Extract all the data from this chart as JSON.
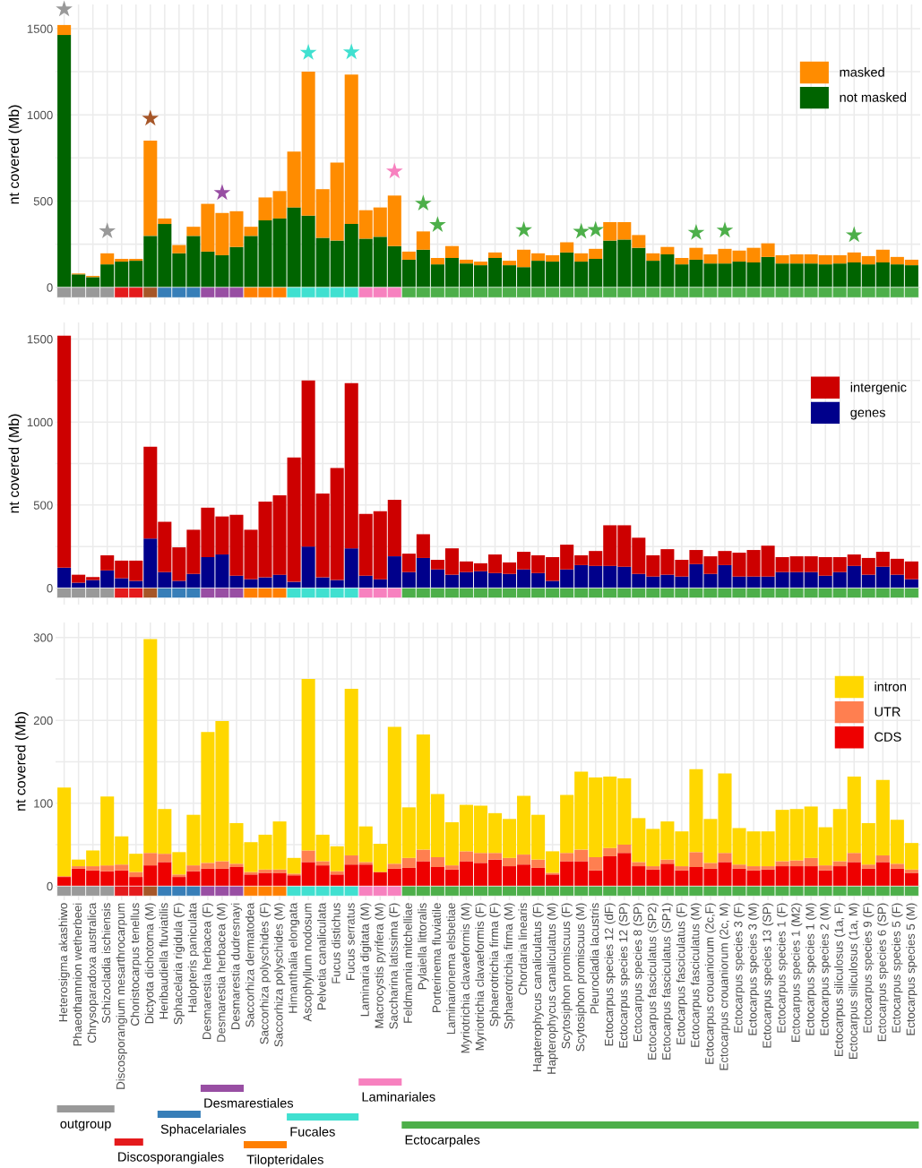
{
  "chart_data": [
    {
      "type": "bar",
      "stacked": true,
      "ylabel": "nt covered (Mb)",
      "tick_labels": "y",
      "grid": true,
      "legend": "top right",
      "ylim": [
        -100,
        1640
      ],
      "yticks": [
        0,
        {
          "value": 250,
          "label": null
        },
        500,
        {
          "value": 750,
          "label": null
        },
        1000,
        {
          "value": 1250,
          "label": null
        },
        1500
      ],
      "categories": [
        "Heterosigma akashiwo",
        "Phaeothamnion wetherbeei",
        "Chrysoparadoxa australica",
        "Schizocladia ischiensis",
        "Discosporangium mesarthrocarpum",
        "Choristocarpus tenellus",
        "Dictyota dichotoma (M)",
        "Heribaudiella fluviatilis",
        "Sphacelaria rigidula (F)",
        "Halopteris paniculata",
        "Desmarestia herbacea (F)",
        "Desmarestia herbacea (M)",
        "Desmarestia dudresnayi",
        "Saccorhiza dermatodea",
        "Saccorhiza polyschides (F)",
        "Saccorhiza polyschides (M)",
        "Himanthalia elongata",
        "Ascophyllum nodosum",
        "Pelvetia canaliculata",
        "Fucus distichus",
        "Fucus serratus",
        "Laminaria digitata (M)",
        "Macrocystis pyrifera (M)",
        "Saccharina latissima (F)",
        "Feldmannia mitchelliae",
        "Pylaiella littoralis",
        "Porterinema fluviatile",
        "Laminarionema elsbetiae",
        "Myriotrichia clavaeformis (M)",
        "Myriotrichia clavaeformis (F)",
        "Sphaerotrichia firma (F)",
        "Sphaerotrichia firma (M)",
        "Chordaria linearis",
        "Hapterophycus canaliculatus (F)",
        "Hapterophycus canaliculatus (M)",
        "Scytosiphon promiscuus (F)",
        "Scytosiphon promiscuus (M)",
        "Pleurocladia lacustris",
        "Ectocarpus species 12 (dF)",
        "Ectocarpus species 12 (SP)",
        "Ectocarpus species 8 (SP)",
        "Ectocarpus fasciculatus (SP2)",
        "Ectocarpus fasciculatus (SP1)",
        "Ectocarpus fasciculatus (F)",
        "Ectocarpus fasciculatus (M)",
        "Ectocarpus crouaniorum (2c,F)",
        "Ectocarpus crouaniorum (2c, M)",
        "Ectocarpus species 3 (F)",
        "Ectocarpus species 3 (M)",
        "Ectocarpus species 13 (SP)",
        "Ectocarpus species 1 (F)",
        "Ectocarpus species 1 (M2)",
        "Ectocarpus species 1 (M)",
        "Ectocarpus species 2 (M)",
        "Ectocarpus siliculosus (1a, F)",
        "Ectocarpus siliculosus (1a, M)",
        "Ectocarpus species 9 (F)",
        "Ectocarpus species 6 (SP)",
        "Ectocarpus species 5 (F)",
        "Ectocarpus species 5 (M)"
      ],
      "series": [
        {
          "name": "not masked",
          "color": "#006400",
          "values": [
            1463,
            75,
            59,
            133,
            149,
            154,
            298,
            367,
            197,
            298,
            207,
            186,
            234,
            298,
            388,
            399,
            463,
            415,
            287,
            271,
            367,
            282,
            293,
            239,
            160,
            218,
            133,
            170,
            138,
            128,
            170,
            128,
            117,
            154,
            149,
            202,
            149,
            165,
            271,
            277,
            229,
            154,
            191,
            133,
            160,
            138,
            138,
            149,
            144,
            176,
            138,
            138,
            138,
            133,
            138,
            144,
            133,
            144,
            133,
            128
          ]
        },
        {
          "name": "masked",
          "color": "#ff8c00",
          "values": [
            58,
            5,
            7,
            64,
            16,
            11,
            553,
            32,
            48,
            53,
            277,
            245,
            207,
            53,
            133,
            159,
            324,
            835,
            282,
            452,
            867,
            165,
            170,
            293,
            47,
            106,
            37,
            69,
            22,
            21,
            32,
            26,
            101,
            43,
            37,
            59,
            48,
            58,
            107,
            101,
            74,
            43,
            43,
            37,
            69,
            53,
            85,
            64,
            85,
            79,
            48,
            53,
            53,
            53,
            48,
            58,
            48,
            74,
            43,
            32
          ]
        },
        {
          "type": "scatter",
          "marker": "star",
          "x": [
            "Heterosigma akashiwo",
            "Schizocladia ischiensis",
            "Dictyota dichotoma (M)",
            "Desmarestia herbacea (M)",
            "Ascophyllum nodosum",
            "Fucus serratus",
            "Saccharina latissima (F)",
            "Pylaiella littoralis",
            "Porterinema fluviatile",
            "Chordaria linearis",
            "Scytosiphon promiscuus (M)",
            "Pleurocladia lacustris",
            "Ectocarpus fasciculatus (M)",
            "Ectocarpus crouaniorum (2c, M)",
            "Ectocarpus siliculosus (1a, M)"
          ],
          "values": [
            1612,
            326,
            979,
            548,
            1360,
            1363,
            672,
            486,
            362,
            332,
            323,
            333,
            317,
            330,
            303
          ],
          "colors": [
            "#999999",
            "#999999",
            "#a65628",
            "#984ea3",
            "#40e0d0",
            "#40e0d0",
            "#f781bf",
            "#4daf4a",
            "#4daf4a",
            "#4daf4a",
            "#4daf4a",
            "#4daf4a",
            "#4daf4a",
            "#4daf4a",
            "#4daf4a"
          ]
        },
        {
          "type": "bar",
          "values": [
            -60,
            -60,
            -60,
            -60,
            -60,
            -60,
            -60,
            -60,
            -60,
            -60,
            -60,
            -60,
            -60,
            -60,
            -60,
            -60,
            -60,
            -60,
            -60,
            -60,
            -60,
            -60,
            -60,
            -60,
            -60,
            -60,
            -60,
            -60,
            -60,
            -60,
            -60,
            -60,
            -60,
            -60,
            -60,
            -60,
            -60,
            -60,
            -60,
            -60,
            -60,
            -60,
            -60,
            -60,
            -60,
            -60,
            -60,
            -60,
            -60,
            -60,
            -60,
            -60,
            -60,
            -60,
            -60,
            -60,
            -60,
            -60,
            -60,
            -60
          ],
          "colors": [
            "#999999",
            "#999999",
            "#999999",
            "#999999",
            "#e41a1c",
            "#e41a1c",
            "#a65628",
            "#377eb8",
            "#377eb8",
            "#377eb8",
            "#984ea3",
            "#984ea3",
            "#984ea3",
            "#ff7f00",
            "#ff7f00",
            "#ff7f00",
            "#40e0d0",
            "#40e0d0",
            "#40e0d0",
            "#40e0d0",
            "#40e0d0",
            "#f781bf",
            "#f781bf",
            "#f781bf",
            "#4daf4a",
            "#4daf4a",
            "#4daf4a",
            "#4daf4a",
            "#4daf4a",
            "#4daf4a",
            "#4daf4a",
            "#4daf4a",
            "#4daf4a",
            "#4daf4a",
            "#4daf4a",
            "#4daf4a",
            "#4daf4a",
            "#4daf4a",
            "#4daf4a",
            "#4daf4a",
            "#4daf4a",
            "#4daf4a",
            "#4daf4a",
            "#4daf4a",
            "#4daf4a",
            "#4daf4a",
            "#4daf4a",
            "#4daf4a",
            "#4daf4a",
            "#4daf4a",
            "#4daf4a",
            "#4daf4a",
            "#4daf4a",
            "#4daf4a",
            "#4daf4a",
            "#4daf4a",
            "#4daf4a",
            "#4daf4a",
            "#4daf4a",
            "#4daf4a"
          ]
        }
      ]
    },
    {
      "type": "bar",
      "stacked": true,
      "ylabel": "nt covered (Mb)",
      "tick_labels": "y",
      "grid": true,
      "legend": "top right",
      "ylim": [
        -100,
        1600
      ],
      "yticks": [
        0,
        {
          "value": 250,
          "label": null
        },
        500,
        {
          "value": 750,
          "label": null
        },
        1000,
        {
          "value": 1250,
          "label": null
        },
        1500
      ],
      "categories": [
        "Heterosigma akashiwo",
        "Phaeothamnion wetherbeei",
        "Chrysoparadoxa australica",
        "Schizocladia ischiensis",
        "Discosporangium mesarthrocarpum",
        "Choristocarpus tenellus",
        "Dictyota dichotoma (M)",
        "Heribaudiella fluviatilis",
        "Sphacelaria rigidula (F)",
        "Halopteris paniculata",
        "Desmarestia herbacea (F)",
        "Desmarestia herbacea (M)",
        "Desmarestia dudresnayi",
        "Saccorhiza dermatodea",
        "Saccorhiza polyschides (F)",
        "Saccorhiza polyschides (M)",
        "Himanthalia elongata",
        "Ascophyllum nodosum",
        "Pelvetia canaliculata",
        "Fucus distichus",
        "Fucus serratus",
        "Laminaria digitata (M)",
        "Macrocystis pyrifera (M)",
        "Saccharina latissima (F)",
        "Feldmannia mitchelliae",
        "Pylaiella littoralis",
        "Porterinema fluviatile",
        "Laminarionema elsbetiae",
        "Myriotrichia clavaeformis (M)",
        "Myriotrichia clavaeformis (F)",
        "Sphaerotrichia firma (F)",
        "Sphaerotrichia firma (M)",
        "Chordaria linearis",
        "Hapterophycus canaliculatus (F)",
        "Hapterophycus canaliculatus (M)",
        "Scytosiphon promiscuus (F)",
        "Scytosiphon promiscuus (M)",
        "Pleurocladia lacustris",
        "Ectocarpus species 12 (dF)",
        "Ectocarpus species 12 (SP)",
        "Ectocarpus species 8 (SP)",
        "Ectocarpus fasciculatus (SP2)",
        "Ectocarpus fasciculatus (SP1)",
        "Ectocarpus fasciculatus (F)",
        "Ectocarpus fasciculatus (M)",
        "Ectocarpus crouaniorum (2c,F)",
        "Ectocarpus crouaniorum (2c, M)",
        "Ectocarpus species 3 (F)",
        "Ectocarpus species 3 (M)",
        "Ectocarpus species 13 (SP)",
        "Ectocarpus species 1 (F)",
        "Ectocarpus species 1 (M2)",
        "Ectocarpus species 1 (M)",
        "Ectocarpus species 2 (M)",
        "Ectocarpus siliculosus (1a, F)",
        "Ectocarpus siliculosus (1a, M)",
        "Ectocarpus species 9 (F)",
        "Ectocarpus species 6 (SP)",
        "Ectocarpus species 5 (F)",
        "Ectocarpus species 5 (M)"
      ],
      "series": [
        {
          "name": "genes",
          "color": "#00008b",
          "values": [
            122,
            32,
            48,
            106,
            59,
            43,
            298,
            96,
            43,
            85,
            186,
            202,
            74,
            53,
            64,
            80,
            37,
            250,
            64,
            48,
            239,
            74,
            53,
            191,
            96,
            181,
            112,
            80,
            96,
            101,
            90,
            85,
            112,
            90,
            43,
            112,
            138,
            133,
            133,
            128,
            85,
            69,
            80,
            69,
            144,
            85,
            138,
            69,
            69,
            69,
            96,
            96,
            96,
            74,
            96,
            133,
            80,
            128,
            80,
            53
          ]
        },
        {
          "name": "intergenic",
          "color": "#cd0000",
          "values": [
            1399,
            48,
            18,
            91,
            106,
            122,
            553,
            303,
            202,
            266,
            298,
            229,
            367,
            298,
            457,
            478,
            750,
            1000,
            505,
            675,
            995,
            373,
            410,
            341,
            111,
            143,
            58,
            159,
            64,
            48,
            112,
            69,
            106,
            107,
            143,
            149,
            59,
            90,
            245,
            250,
            218,
            128,
            154,
            101,
            85,
            106,
            85,
            144,
            160,
            186,
            90,
            95,
            95,
            112,
            90,
            69,
            101,
            90,
            96,
            107
          ]
        },
        {
          "type": "bar",
          "values": [
            -60,
            -60,
            -60,
            -60,
            -60,
            -60,
            -60,
            -60,
            -60,
            -60,
            -60,
            -60,
            -60,
            -60,
            -60,
            -60,
            -60,
            -60,
            -60,
            -60,
            -60,
            -60,
            -60,
            -60,
            -60,
            -60,
            -60,
            -60,
            -60,
            -60,
            -60,
            -60,
            -60,
            -60,
            -60,
            -60,
            -60,
            -60,
            -60,
            -60,
            -60,
            -60,
            -60,
            -60,
            -60,
            -60,
            -60,
            -60,
            -60,
            -60,
            -60,
            -60,
            -60,
            -60,
            -60,
            -60,
            -60,
            -60,
            -60,
            -60
          ],
          "colors": [
            "#999999",
            "#999999",
            "#999999",
            "#999999",
            "#e41a1c",
            "#e41a1c",
            "#a65628",
            "#377eb8",
            "#377eb8",
            "#377eb8",
            "#984ea3",
            "#984ea3",
            "#984ea3",
            "#ff7f00",
            "#ff7f00",
            "#ff7f00",
            "#40e0d0",
            "#40e0d0",
            "#40e0d0",
            "#40e0d0",
            "#40e0d0",
            "#f781bf",
            "#f781bf",
            "#f781bf",
            "#4daf4a",
            "#4daf4a",
            "#4daf4a",
            "#4daf4a",
            "#4daf4a",
            "#4daf4a",
            "#4daf4a",
            "#4daf4a",
            "#4daf4a",
            "#4daf4a",
            "#4daf4a",
            "#4daf4a",
            "#4daf4a",
            "#4daf4a",
            "#4daf4a",
            "#4daf4a",
            "#4daf4a",
            "#4daf4a",
            "#4daf4a",
            "#4daf4a",
            "#4daf4a",
            "#4daf4a",
            "#4daf4a",
            "#4daf4a",
            "#4daf4a",
            "#4daf4a",
            "#4daf4a",
            "#4daf4a",
            "#4daf4a",
            "#4daf4a",
            "#4daf4a",
            "#4daf4a",
            "#4daf4a",
            "#4daf4a",
            "#4daf4a",
            "#4daf4a"
          ]
        }
      ]
    },
    {
      "type": "bar",
      "stacked": true,
      "ylabel": "nt covered (Mb)",
      "grid": true,
      "legend": "top right",
      "ylim": [
        -17,
        318
      ],
      "yticks": [
        0,
        {
          "value": 50,
          "label": null
        },
        100,
        {
          "value": 150,
          "label": null
        },
        200,
        {
          "value": 250,
          "label": null
        },
        300
      ],
      "categories": [
        "Heterosigma akashiwo",
        "Phaeothamnion wetherbeei",
        "Chrysoparadoxa australica",
        "Schizocladia ischiensis",
        "Discosporangium mesarthrocarpum",
        "Choristocarpus tenellus",
        "Dictyota dichotoma (M)",
        "Heribaudiella fluviatilis",
        "Sphacelaria rigidula (F)",
        "Halopteris paniculata",
        "Desmarestia herbacea (F)",
        "Desmarestia herbacea (M)",
        "Desmarestia dudresnayi",
        "Saccorhiza dermatodea",
        "Saccorhiza polyschides (F)",
        "Saccorhiza polyschides (M)",
        "Himanthalia elongata",
        "Ascophyllum nodosum",
        "Pelvetia canaliculata",
        "Fucus distichus",
        "Fucus serratus",
        "Laminaria digitata (M)",
        "Macrocystis pyrifera (M)",
        "Saccharina latissima (F)",
        "Feldmannia mitchelliae",
        "Pylaiella littoralis",
        "Porterinema fluviatile",
        "Laminarionema elsbetiae",
        "Myriotrichia clavaeformis (M)",
        "Myriotrichia clavaeformis (F)",
        "Sphaerotrichia firma (F)",
        "Sphaerotrichia firma (M)",
        "Chordaria linearis",
        "Hapterophycus canaliculatus (F)",
        "Hapterophycus canaliculatus (M)",
        "Scytosiphon promiscuus (F)",
        "Scytosiphon promiscuus (M)",
        "Pleurocladia lacustris",
        "Ectocarpus species 12 (dF)",
        "Ectocarpus species 12 (SP)",
        "Ectocarpus species 8 (SP)",
        "Ectocarpus fasciculatus (SP2)",
        "Ectocarpus fasciculatus (SP1)",
        "Ectocarpus fasciculatus (F)",
        "Ectocarpus fasciculatus (M)",
        "Ectocarpus crouaniorum (2c,F)",
        "Ectocarpus crouaniorum (2c, M)",
        "Ectocarpus species 3 (F)",
        "Ectocarpus species 3 (M)",
        "Ectocarpus species 13 (SP)",
        "Ectocarpus species 1 (F)",
        "Ectocarpus species 1 (M2)",
        "Ectocarpus species 1 (M)",
        "Ectocarpus species 2 (M)",
        "Ectocarpus siliculosus (1a, F)",
        "Ectocarpus siliculosus (1a, M)",
        "Ectocarpus species 9 (F)",
        "Ectocarpus species 6 (SP)",
        "Ectocarpus species 5 (F)",
        "Ectocarpus species 5 (M)"
      ],
      "series": [
        {
          "name": "CDS",
          "color": "#ee0000",
          "values": [
            11,
            21,
            19,
            18,
            19,
            11,
            25,
            29,
            11,
            18,
            21,
            21,
            23,
            14,
            16,
            16,
            13,
            29,
            25,
            14,
            26,
            26,
            17,
            21,
            22,
            30,
            23,
            20,
            30,
            28,
            32,
            24,
            26,
            22,
            14,
            30,
            30,
            19,
            36,
            40,
            24,
            20,
            27,
            19,
            23,
            21,
            29,
            21,
            19,
            20,
            24,
            24,
            24,
            19,
            24,
            29,
            21,
            29,
            21,
            16
          ]
        },
        {
          "name": "UTR",
          "color": "#ff7f50",
          "values": [
            1,
            3,
            5,
            7,
            7,
            6,
            15,
            10,
            3,
            7,
            7,
            9,
            4,
            3,
            4,
            4,
            2,
            14,
            5,
            4,
            11,
            3,
            0,
            6,
            12,
            14,
            12,
            5,
            12,
            12,
            8,
            10,
            12,
            10,
            2,
            10,
            14,
            16,
            10,
            10,
            5,
            4,
            5,
            5,
            18,
            7,
            11,
            5,
            5,
            4,
            6,
            7,
            10,
            6,
            6,
            11,
            5,
            8,
            6,
            4
          ]
        },
        {
          "name": "intron",
          "color": "#ffd700",
          "values": [
            107,
            8,
            19,
            83,
            34,
            22,
            258,
            54,
            27,
            61,
            158,
            169,
            49,
            36,
            42,
            58,
            19,
            207,
            32,
            30,
            201,
            43,
            34,
            165,
            61,
            139,
            76,
            52,
            56,
            57,
            48,
            47,
            71,
            54,
            26,
            70,
            94,
            96,
            86,
            80,
            53,
            45,
            46,
            42,
            100,
            53,
            96,
            44,
            42,
            42,
            62,
            62,
            62,
            46,
            63,
            92,
            50,
            91,
            53,
            32
          ]
        },
        {
          "type": "bar",
          "values": [
            -12,
            -12,
            -12,
            -12,
            -12,
            -12,
            -12,
            -12,
            -12,
            -12,
            -12,
            -12,
            -12,
            -12,
            -12,
            -12,
            -12,
            -12,
            -12,
            -12,
            -12,
            -12,
            -12,
            -12,
            -12,
            -12,
            -12,
            -12,
            -12,
            -12,
            -12,
            -12,
            -12,
            -12,
            -12,
            -12,
            -12,
            -12,
            -12,
            -12,
            -12,
            -12,
            -12,
            -12,
            -12,
            -12,
            -12,
            -12,
            -12,
            -12,
            -12,
            -12,
            -12,
            -12,
            -12,
            -12,
            -12,
            -12,
            -12,
            -12
          ],
          "colors": [
            "#999999",
            "#999999",
            "#999999",
            "#999999",
            "#e41a1c",
            "#e41a1c",
            "#a65628",
            "#377eb8",
            "#377eb8",
            "#377eb8",
            "#984ea3",
            "#984ea3",
            "#984ea3",
            "#ff7f00",
            "#ff7f00",
            "#ff7f00",
            "#40e0d0",
            "#40e0d0",
            "#40e0d0",
            "#40e0d0",
            "#40e0d0",
            "#f781bf",
            "#f781bf",
            "#f781bf",
            "#4daf4a",
            "#4daf4a",
            "#4daf4a",
            "#4daf4a",
            "#4daf4a",
            "#4daf4a",
            "#4daf4a",
            "#4daf4a",
            "#4daf4a",
            "#4daf4a",
            "#4daf4a",
            "#4daf4a",
            "#4daf4a",
            "#4daf4a",
            "#4daf4a",
            "#4daf4a",
            "#4daf4a",
            "#4daf4a",
            "#4daf4a",
            "#4daf4a",
            "#4daf4a",
            "#4daf4a",
            "#4daf4a",
            "#4daf4a",
            "#4daf4a",
            "#4daf4a",
            "#4daf4a",
            "#4daf4a",
            "#4daf4a",
            "#4daf4a",
            "#4daf4a",
            "#4daf4a",
            "#4daf4a",
            "#4daf4a",
            "#4daf4a",
            "#4daf4a"
          ]
        }
      ],
      "annotations": [
        "outgroup",
        "Discosporangiales",
        "Sphacelariales",
        "Desmarestiales",
        "Tilopteridales",
        "Fucales",
        "Laminariales",
        "Ectocarpales"
      ]
    }
  ]
}
